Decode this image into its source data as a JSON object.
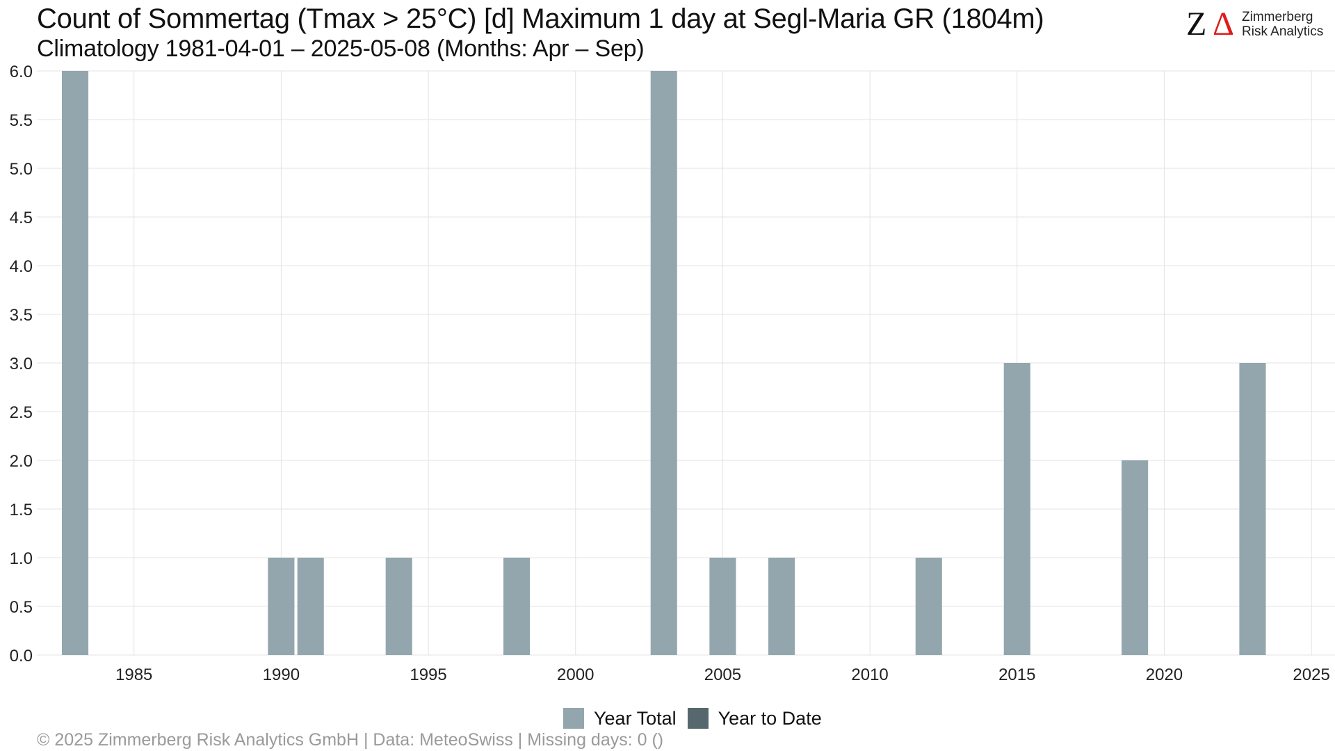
{
  "title": "Count of Sommertag (Tmax > 25°C) [d] Maximum 1 day at Segl-Maria  GR (1804m)",
  "subtitle": "Climatology 1981-04-01 – 2025-05-08 (Months: Apr – Sep)",
  "logo": {
    "mark": "Z",
    "delta": "Δ",
    "line1": "Zimmerberg",
    "line2": "Risk Analytics"
  },
  "footer": "©  2025 Zimmerberg Risk Analytics GmbH | Data: MeteoSwiss | Missing days: 0 ()",
  "colors": {
    "year_total": "#93a6ad",
    "year_to_date": "#56686e",
    "grid": "#e3e3e3"
  },
  "chart_data": {
    "type": "bar",
    "title": "Count of Sommertag (Tmax > 25°C) [d] Maximum 1 day at Segl-Maria  GR (1804m)",
    "xlabel": "",
    "ylabel": "",
    "xlim": [
      1981.7,
      2025.8
    ],
    "ylim": [
      0,
      6
    ],
    "x_ticks": [
      1985,
      1990,
      1995,
      2000,
      2005,
      2010,
      2015,
      2020,
      2025
    ],
    "y_ticks": [
      "0.0",
      "0.5",
      "1.0",
      "1.5",
      "2.0",
      "2.5",
      "3.0",
      "3.5",
      "4.0",
      "4.5",
      "5.0",
      "5.5",
      "6.0"
    ],
    "grid": true,
    "legend_position": "bottom",
    "series": [
      {
        "name": "Year Total",
        "color": "#93a6ad",
        "points": [
          {
            "x": 1983,
            "y": 6
          },
          {
            "x": 1990,
            "y": 1
          },
          {
            "x": 1991,
            "y": 1
          },
          {
            "x": 1994,
            "y": 1
          },
          {
            "x": 1998,
            "y": 1
          },
          {
            "x": 2003,
            "y": 6
          },
          {
            "x": 2005,
            "y": 1
          },
          {
            "x": 2007,
            "y": 1
          },
          {
            "x": 2012,
            "y": 1
          },
          {
            "x": 2015,
            "y": 3
          },
          {
            "x": 2019,
            "y": 2
          },
          {
            "x": 2023,
            "y": 3
          }
        ]
      },
      {
        "name": "Year to Date",
        "color": "#56686e",
        "points": []
      }
    ]
  }
}
